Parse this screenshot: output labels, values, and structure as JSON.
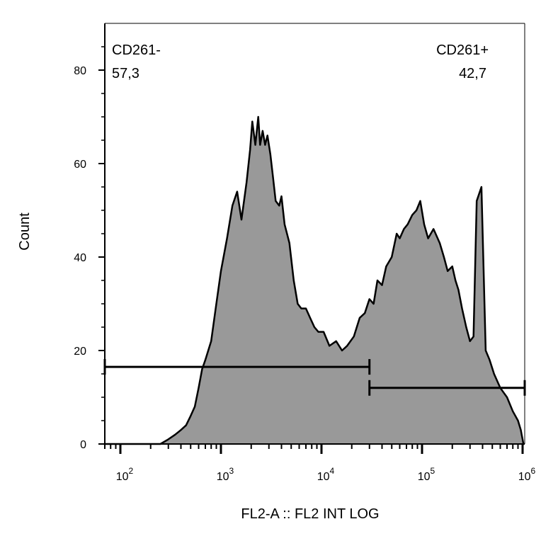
{
  "chart_data": {
    "type": "area",
    "xlabel": "FL2-A :: FL2 INT LOG",
    "ylabel": "Count",
    "x_scale": "log",
    "xlim": [
      70,
      1050000
    ],
    "ylim": [
      0,
      90
    ],
    "y_ticks": [
      0,
      20,
      40,
      60,
      80
    ],
    "x_ticks": [
      {
        "value": 100,
        "base": "10",
        "exp": "2"
      },
      {
        "value": 1000,
        "base": "10",
        "exp": "3"
      },
      {
        "value": 10000,
        "base": "10",
        "exp": "4"
      },
      {
        "value": 100000,
        "base": "10",
        "exp": "5"
      },
      {
        "value": 1000000,
        "base": "10",
        "exp": "6"
      }
    ],
    "fill_color": "#999999",
    "line_color": "#000000",
    "series": [
      {
        "x": [
          70,
          150,
          250,
          300,
          350,
          400,
          450,
          500,
          550,
          600,
          650,
          700,
          800,
          900,
          1000,
          1150,
          1300,
          1450,
          1600,
          1800,
          1950,
          2050,
          2200,
          2350,
          2450,
          2600,
          2750,
          2900,
          3100,
          3300,
          3500,
          3800,
          4000,
          4300,
          4800,
          5300,
          5800,
          6300,
          7000,
          7700,
          8500,
          9300,
          10500,
          12000,
          14000,
          16000,
          18000,
          21000,
          24000,
          27000,
          30000,
          33000,
          36000,
          40000,
          44000,
          50000,
          56000,
          60000,
          66000,
          72000,
          80000,
          88000,
          96000,
          105000,
          115000,
          130000,
          150000,
          165000,
          180000,
          200000,
          215000,
          230000,
          250000,
          275000,
          300000,
          325000,
          350000,
          390000,
          430000,
          470000,
          520000,
          600000,
          700000,
          800000,
          900000,
          930000,
          960000,
          980000,
          1000000,
          1020000,
          1040000
        ],
        "values": [
          0,
          0,
          0,
          1,
          2,
          3,
          4,
          6,
          8,
          12,
          16,
          18,
          22,
          30,
          37,
          44,
          51,
          54,
          48,
          56,
          63,
          69,
          64,
          70,
          64,
          67,
          64,
          66,
          62,
          57,
          52,
          51,
          53,
          47,
          43,
          35,
          30,
          29,
          29,
          27,
          25,
          24,
          24,
          21,
          22,
          20,
          21,
          23,
          27,
          28,
          31,
          30,
          35,
          34,
          38,
          40,
          45,
          44,
          46,
          47,
          49,
          50,
          52,
          47,
          44,
          46,
          43,
          40,
          37,
          38,
          35,
          33,
          29,
          25,
          22,
          23,
          52,
          55,
          20,
          18,
          15,
          12,
          10,
          7,
          5,
          4,
          3,
          2,
          1,
          0,
          0
        ]
      }
    ],
    "gates": [
      {
        "name": "CD261-",
        "label": "CD261-",
        "value": "57,3",
        "x_start": 70,
        "x_end": 30000,
        "y": 16.5
      },
      {
        "name": "CD261+",
        "label": "CD261+",
        "value": "42,7",
        "x_start": 30000,
        "x_end": 1050000,
        "y": 12
      }
    ]
  }
}
